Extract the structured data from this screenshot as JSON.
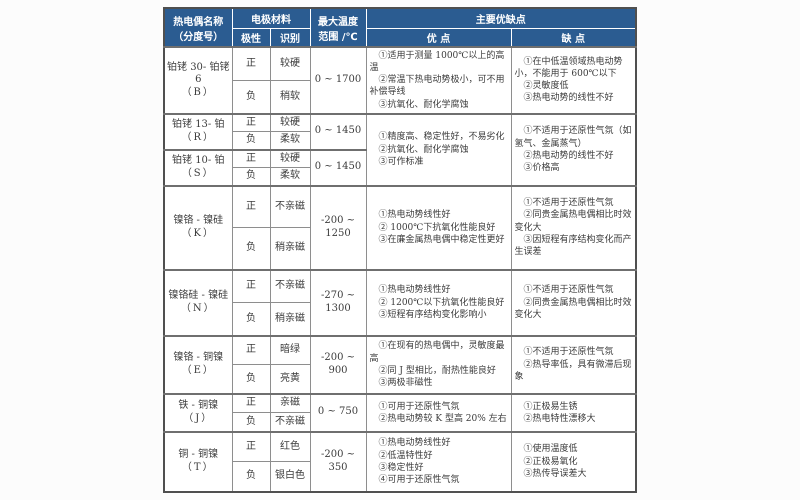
{
  "colors": {
    "header_bg": "#2b5c91",
    "header_text": "#ffffff",
    "grid_line": "#8e8e8e",
    "heavy_line": "#6f6f6f",
    "body_text": "#3b3b3b"
  },
  "header": {
    "name_line1": "热电偶名称",
    "name_line2": "（分度号）",
    "electrode_material": "电极材料",
    "polarity": "极性",
    "identification": "识别",
    "max_temp_line1": "最大温度",
    "max_temp_line2": "范围 /℃",
    "pros_cons": "主要优缺点",
    "advantages": "优 点",
    "disadvantages": "缺 点"
  },
  "labels": {
    "positive": "正",
    "negative": "负"
  },
  "groups": [
    {
      "name": "铂铑 30- 铂铑 6",
      "code": "（B）",
      "pos_mark": "较硬",
      "neg_mark": "稍软",
      "range": "0 ~ 1700",
      "pros": [
        "①适用于测量 1000℃以上的高温",
        "②常温下热电动势极小，可不用补偿导线",
        "③抗氧化、耐化学腐蚀"
      ],
      "cons": [
        "①在中低温领域热电动势小，不能用于 600℃以下",
        "②灵敏度低",
        "③热电动势的线性不好"
      ]
    },
    {
      "name": "铂铑 13- 铂",
      "code": "（R）",
      "pos_mark": "较硬",
      "neg_mark": "柔软",
      "range": "0 ~ 1450",
      "pros": [
        "①精度高、稳定性好，不易劣化",
        "②抗氧化、耐化学腐蚀",
        "③可作标准"
      ],
      "cons": [
        "①不适用于还原性气氛（如氢气、金属蒸气）",
        "②热电动势的线性不好",
        "③价格高"
      ]
    },
    {
      "name": "铂铑 10- 铂",
      "code": "（S）",
      "pos_mark": "较硬",
      "neg_mark": "柔软",
      "range": "0 ~ 1450"
    },
    {
      "name": "镍铬 - 镍硅",
      "code": "（K）",
      "pos_mark": "不亲磁",
      "neg_mark": "稍亲磁",
      "range": "-200 ~ 1250",
      "pros": [
        "①热电动势线性好",
        "② 1000℃下抗氧化性能良好",
        "③在廉金属热电偶中稳定性更好"
      ],
      "cons": [
        "①不适用于还原性气氛",
        "②同贵金属热电偶相比时效变化大",
        "③因短程有序结构变化而产生误差"
      ]
    },
    {
      "name": "镍铬硅 - 镍硅",
      "code": "（N）",
      "pos_mark": "不亲磁",
      "neg_mark": "稍亲磁",
      "range": "-270 ~ 1300",
      "pros": [
        "①热电动势线性好",
        "② 1200℃以下抗氧化性能良好",
        "③短程有序结构变化影响小"
      ],
      "cons": [
        "①不适用于还原性气氛",
        "②同贵金属热电偶相比时效变化大"
      ]
    },
    {
      "name": "镍铬 - 铜镍",
      "code": "（E）",
      "pos_mark": "暗绿",
      "neg_mark": "亮黄",
      "range": "-200 ~ 900",
      "pros": [
        "①在现有的热电偶中，灵敏度最高",
        "②同 J 型相比，耐热性能良好",
        "③两极非磁性"
      ],
      "cons": [
        "①不适用于还原性气氛",
        "②热导率低，具有微滞后现象"
      ]
    },
    {
      "name": "铁 - 铜镍",
      "code": "（J）",
      "pos_mark": "亲磁",
      "neg_mark": "不亲磁",
      "range": "0 ~ 750",
      "pros": [
        "①可用于还原性气氛",
        "②热电动势较 K 型高 20% 左右"
      ],
      "cons": [
        "①正极易生锈",
        "②热电特性漂移大"
      ]
    },
    {
      "name": "铜 - 铜镍",
      "code": "（T）",
      "pos_mark": "红色",
      "neg_mark": "银白色",
      "range": "-200 ~ 350",
      "pros": [
        "①热电动势线性好",
        "②低温特性好",
        "③稳定性好",
        "④可用于还原性气氛"
      ],
      "cons": [
        "①使用温度低",
        "②正极易氧化",
        "③热传导误差大"
      ]
    }
  ]
}
